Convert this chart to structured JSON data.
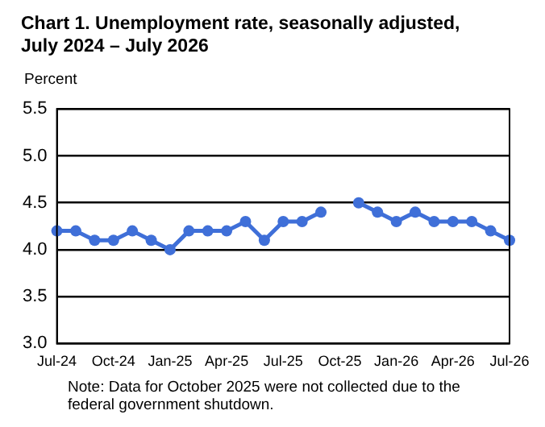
{
  "chart_data": {
    "type": "line",
    "title": "Chart 1. Unemployment rate, seasonally adjusted,\nJuly 2024 – July 2026",
    "ylabel": "Percent",
    "categories": [
      "Jul-24",
      null,
      null,
      "Oct-24",
      null,
      null,
      "Jan-25",
      null,
      null,
      "Apr-25",
      null,
      null,
      "Jul-25",
      null,
      null,
      "Oct-25",
      null,
      null,
      "Jan-26",
      null,
      null,
      "Apr-26",
      null,
      null,
      "Jul-26"
    ],
    "series": [
      {
        "color": "#3f6fd8",
        "values": [
          4.2,
          4.2,
          4.1,
          4.1,
          4.2,
          4.1,
          4.0,
          4.2,
          4.2,
          4.2,
          4.3,
          4.1,
          4.3,
          4.3,
          4.4,
          null,
          4.5,
          4.4,
          4.3,
          4.4,
          4.3,
          4.3,
          4.3,
          4.2,
          4.1
        ]
      }
    ],
    "ylim": [
      3.0,
      5.5
    ],
    "yticks": [
      {
        "value": 3,
        "label": "3.0"
      },
      3.5,
      {
        "value": 4,
        "label": "4.0"
      },
      4.5,
      {
        "value": 5,
        "label": "5.0"
      },
      5.5
    ],
    "grid": "y",
    "marker": "circle",
    "line_style": "solid",
    "legend": false,
    "annotations": [
      "Note: Data for October 2025 were not collected due to the federal government shutdown."
    ]
  }
}
